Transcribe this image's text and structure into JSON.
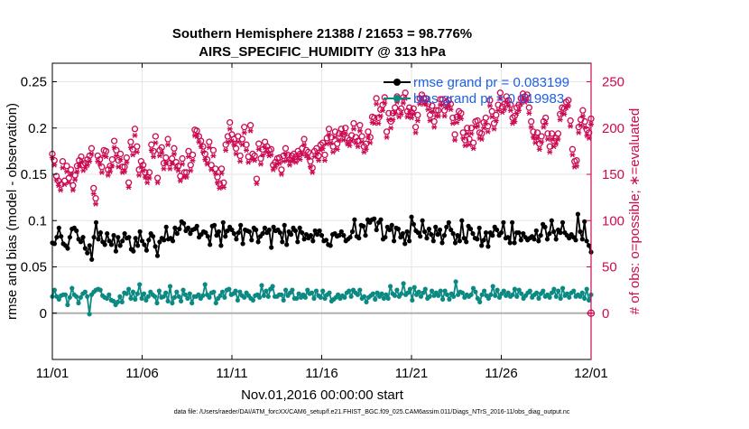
{
  "chart_data": {
    "type": "line",
    "title": "Southern Hemisphere 21388 / 21653 = 98.776%",
    "subtitle": "AIRS_SPECIFIC_HUMIDITY @ 313 hPa",
    "xlabel": "Nov.01,2016 00:00:00 start",
    "ylabel": "rmse and bias (model - observation)",
    "ylabel_right": "# of obs: o=possible; ∗=evaluated",
    "footnote": "data file: /Users/raeder/DAI/ATM_forcXX/CAM6_setup/f.e21.FHIST_BGC.f09_025.CAM6assim.011/Diags_NTrS_2016-11/obs_diag_output.nc",
    "x_tick_labels": [
      "11/01",
      "11/06",
      "11/11",
      "11/16",
      "11/21",
      "11/26",
      "12/01"
    ],
    "x_tick_days": [
      0,
      5,
      10,
      15,
      20,
      25,
      30
    ],
    "xlim": [
      0,
      30
    ],
    "y_ticks": [
      0,
      0.05,
      0.1,
      0.15,
      0.2,
      0.25
    ],
    "y_tick_labels": [
      "0",
      "0.05",
      "0.1",
      "0.15",
      "0.2",
      "0.25"
    ],
    "ylim": [
      -0.05,
      0.27
    ],
    "y2_ticks": [
      0,
      50,
      100,
      150,
      200,
      250
    ],
    "y2_tick_labels": [
      "0",
      "50",
      "100",
      "150",
      "200",
      "250"
    ],
    "y2lim": [
      -50,
      270
    ],
    "grid": true,
    "legend_position": "top-right",
    "colors": {
      "rmse": "#000000",
      "bias": "#0a8a82",
      "obs": "#cc0a52",
      "zero_line": "#b0b0b0",
      "legend_text": "#1f5fe0"
    },
    "series": [
      {
        "name": "rmse",
        "legend": "rmse grand pr = 0.083199",
        "values": [
          0.076,
          0.075,
          0.082,
          0.092,
          0.083,
          0.075,
          0.073,
          0.07,
          0.082,
          0.091,
          0.092,
          0.089,
          0.08,
          0.077,
          0.082,
          0.07,
          0.065,
          0.073,
          0.058,
          0.082,
          0.098,
          0.08,
          0.087,
          0.077,
          0.074,
          0.086,
          0.078,
          0.074,
          0.084,
          0.067,
          0.082,
          0.073,
          0.078,
          0.086,
          0.081,
          0.082,
          0.069,
          0.067,
          0.081,
          0.073,
          0.088,
          0.078,
          0.074,
          0.068,
          0.079,
          0.086,
          0.083,
          0.072,
          0.062,
          0.077,
          0.081,
          0.079,
          0.093,
          0.08,
          0.081,
          0.078,
          0.092,
          0.086,
          0.091,
          0.099,
          0.097,
          0.089,
          0.092,
          0.086,
          0.09,
          0.091,
          0.094,
          0.082,
          0.085,
          0.088,
          0.087,
          0.083,
          0.074,
          0.094,
          0.095,
          0.084,
          0.088,
          0.073,
          0.098,
          0.083,
          0.089,
          0.093,
          0.09,
          0.086,
          0.08,
          0.087,
          0.095,
          0.075,
          0.09,
          0.089,
          0.088,
          0.079,
          0.092,
          0.09,
          0.077,
          0.083,
          0.086,
          0.092,
          0.087,
          0.09,
          0.071,
          0.093,
          0.089,
          0.09,
          0.087,
          0.077,
          0.095,
          0.074,
          0.088,
          0.085,
          0.092,
          0.089,
          0.077,
          0.092,
          0.087,
          0.08,
          0.085,
          0.081,
          0.084,
          0.078,
          0.089,
          0.085,
          0.089,
          0.084,
          0.078,
          0.079,
          0.074,
          0.073,
          0.085,
          0.086,
          0.083,
          0.084,
          0.088,
          0.084,
          0.078,
          0.08,
          0.082,
          0.088,
          0.101,
          0.083,
          0.081,
          0.095,
          0.094,
          0.084,
          0.101,
          0.098,
          0.101,
          0.102,
          0.09,
          0.098,
          0.101,
          0.08,
          0.082,
          0.093,
          0.09,
          0.095,
          0.078,
          0.092,
          0.091,
          0.082,
          0.086,
          0.075,
          0.088,
          0.078,
          0.104,
          0.096,
          0.089,
          0.087,
          0.083,
          0.1,
          0.088,
          0.081,
          0.091,
          0.085,
          0.078,
          0.093,
          0.085,
          0.09,
          0.076,
          0.084,
          0.093,
          0.098,
          0.09,
          0.086,
          0.076,
          0.084,
          0.078,
          0.1,
          0.081,
          0.077,
          0.094,
          0.091,
          0.086,
          0.081,
          0.08,
          0.092,
          0.073,
          0.079,
          0.087,
          0.072,
          0.087,
          0.084,
          0.093,
          0.09,
          0.084,
          0.087,
          0.098,
          0.081,
          0.082,
          0.076,
          0.098,
          0.076,
          0.087,
          0.087,
          0.079,
          0.086,
          0.082,
          0.079,
          0.081,
          0.083,
          0.08,
          0.089,
          0.078,
          0.084,
          0.096,
          0.093,
          0.08,
          0.086,
          0.1,
          0.088,
          0.08,
          0.09,
          0.087,
          0.098,
          0.087,
          0.084,
          0.081,
          0.085,
          0.082,
          0.079,
          0.107,
          0.088,
          0.08,
          0.099,
          0.078,
          0.073,
          0.066
        ]
      },
      {
        "name": "bias",
        "legend": "bias grand pr = 0.019983",
        "values": [
          0.018,
          0.025,
          0.018,
          0.015,
          0.019,
          0.02,
          0.02,
          0.009,
          0.017,
          0.027,
          0.02,
          0.018,
          0.011,
          0.017,
          0.021,
          0.023,
          0.018,
          -0.001,
          0.02,
          0.023,
          0.025,
          0.026,
          0.025,
          0.019,
          0.017,
          0.016,
          0.02,
          0.014,
          0.013,
          0.009,
          0.012,
          0.018,
          0.012,
          0.022,
          0.021,
          0.026,
          0.016,
          0.023,
          0.015,
          0.021,
          0.031,
          0.016,
          0.021,
          0.014,
          0.018,
          0.023,
          0.02,
          0.018,
          0.011,
          0.024,
          0.017,
          0.018,
          0.022,
          0.013,
          0.029,
          0.011,
          0.017,
          0.023,
          0.018,
          0.013,
          0.025,
          0.02,
          0.016,
          0.021,
          0.011,
          0.018,
          0.018,
          0.02,
          0.016,
          0.019,
          0.031,
          0.02,
          0.017,
          0.022,
          0.023,
          0.011,
          0.016,
          0.019,
          0.023,
          0.017,
          0.025,
          0.026,
          0.02,
          0.021,
          0.024,
          0.014,
          0.023,
          0.019,
          0.017,
          0.022,
          0.019,
          0.016,
          0.014,
          0.019,
          0.02,
          0.017,
          0.03,
          0.019,
          0.024,
          0.018,
          0.026,
          0.029,
          0.018,
          0.018,
          0.02,
          0.02,
          0.014,
          0.025,
          0.019,
          0.022,
          0.025,
          0.016,
          0.016,
          0.021,
          0.017,
          0.02,
          0.017,
          0.025,
          0.021,
          0.022,
          0.016,
          0.024,
          0.019,
          0.017,
          0.024,
          0.016,
          0.02,
          0.022,
          0.013,
          0.015,
          0.017,
          0.02,
          0.016,
          0.019,
          0.017,
          0.022,
          0.024,
          0.018,
          0.025,
          0.022,
          0.02,
          0.025,
          0.016,
          0.018,
          0.012,
          0.017,
          0.019,
          0.021,
          0.015,
          0.022,
          0.018,
          0.021,
          0.016,
          0.02,
          0.016,
          0.029,
          0.021,
          0.019,
          0.025,
          0.018,
          0.021,
          0.032,
          0.02,
          0.022,
          0.026,
          0.014,
          0.028,
          0.02,
          0.023,
          0.018,
          0.022,
          0.026,
          0.016,
          0.018,
          0.024,
          0.019,
          0.022,
          0.019,
          0.024,
          0.015,
          0.024,
          0.02,
          0.015,
          0.021,
          0.018,
          0.034,
          0.02,
          0.023,
          0.022,
          0.017,
          0.02,
          0.018,
          0.02,
          0.027,
          0.023,
          0.016,
          0.012,
          0.02,
          0.024,
          0.019,
          0.016,
          0.02,
          0.029,
          0.019,
          0.025,
          0.017,
          0.021,
          0.024,
          0.019,
          0.022,
          0.018,
          0.02,
          0.026,
          0.018,
          0.025,
          0.021,
          0.016,
          0.019,
          0.022,
          0.024,
          0.017,
          0.02,
          0.022,
          0.016,
          0.021,
          0.024,
          0.018,
          0.02,
          0.017,
          0.022,
          0.026,
          0.018,
          0.024,
          0.016,
          0.027,
          0.019,
          0.021,
          0.017,
          0.022,
          0.024,
          0.018,
          0.02,
          0.018,
          0.022,
          0.016,
          0.026,
          0.014,
          0.02
        ]
      }
    ],
    "obs_possible": [
      172,
      165,
      148,
      143,
      139,
      164,
      143,
      159,
      146,
      155,
      138,
      149,
      159,
      165,
      169,
      160,
      162,
      166,
      170,
      178,
      135,
      124,
      170,
      166,
      158,
      176,
      175,
      155,
      159,
      166,
      186,
      176,
      165,
      172,
      158,
      158,
      168,
      141,
      185,
      177,
      199,
      180,
      155,
      164,
      160,
      152,
      147,
      152,
      182,
      175,
      191,
      146,
      176,
      179,
      162,
      168,
      188,
      162,
      167,
      178,
      163,
      159,
      148,
      167,
      152,
      152,
      175,
      160,
      171,
      198,
      197,
      191,
      186,
      180,
      172,
      166,
      185,
      160,
      176,
      156,
      147,
      140,
      156,
      141,
      182,
      191,
      206,
      193,
      188,
      178,
      191,
      170,
      188,
      201,
      182,
      169,
      203,
      172,
      170,
      145,
      183,
      167,
      177,
      185,
      180,
      176,
      177,
      160,
      163,
      167,
      168,
      155,
      170,
      178,
      171,
      166,
      170,
      172,
      169,
      175,
      172,
      178,
      188,
      176,
      174,
      164,
      157,
      175,
      178,
      170,
      182,
      184,
      171,
      189,
      199,
      190,
      180,
      196,
      183,
      194,
      199,
      193,
      200,
      189,
      187,
      192,
      205,
      190,
      186,
      203,
      191,
      180,
      183,
      196,
      190,
      212,
      211,
      232,
      211,
      220,
      225,
      233,
      196,
      216,
      207,
      216,
      222,
      234,
      218,
      221,
      233,
      238,
      218,
      222,
      217,
      221,
      201,
      214,
      232,
      236,
      232,
      232,
      226,
      214,
      224,
      207,
      219,
      219,
      231,
      231,
      219,
      228,
      230,
      226,
      211,
      193,
      212,
      218,
      216,
      195,
      187,
      200,
      188,
      200,
      184,
      207,
      208,
      195,
      194,
      206,
      211,
      202,
      230,
      218,
      205,
      214,
      225,
      238,
      223,
      226,
      234,
      230,
      225,
      211,
      213,
      222,
      225,
      232,
      237,
      234,
      236,
      222,
      207,
      196,
      190,
      195,
      183,
      191,
      207,
      211,
      194,
      180,
      194,
      186,
      189,
      194,
      215,
      222,
      221,
      228,
      230,
      208,
      177,
      164,
      165,
      201,
      209,
      219,
      207,
      198,
      195,
      210
    ],
    "obs_evaluated": [
      168,
      160,
      144,
      138,
      133,
      157,
      139,
      153,
      141,
      150,
      133,
      144,
      153,
      159,
      163,
      154,
      157,
      160,
      164,
      172,
      129,
      118,
      164,
      161,
      152,
      170,
      169,
      149,
      153,
      159,
      179,
      170,
      158,
      166,
      152,
      153,
      163,
      136,
      179,
      171,
      192,
      174,
      149,
      158,
      154,
      147,
      141,
      146,
      176,
      169,
      184,
      141,
      170,
      173,
      156,
      162,
      182,
      156,
      162,
      172,
      157,
      154,
      143,
      161,
      147,
      147,
      169,
      154,
      165,
      192,
      191,
      185,
      180,
      174,
      166,
      161,
      179,
      155,
      170,
      151,
      141,
      135,
      151,
      136,
      176,
      185,
      199,
      186,
      182,
      172,
      185,
      164,
      182,
      195,
      176,
      163,
      197,
      166,
      165,
      140,
      177,
      161,
      171,
      179,
      174,
      170,
      171,
      155,
      158,
      161,
      162,
      150,
      164,
      172,
      165,
      160,
      164,
      166,
      163,
      169,
      166,
      172,
      182,
      170,
      168,
      158,
      152,
      169,
      172,
      165,
      176,
      178,
      165,
      183,
      193,
      184,
      174,
      190,
      177,
      187,
      193,
      187,
      194,
      183,
      181,
      186,
      199,
      184,
      180,
      197,
      185,
      174,
      177,
      190,
      184,
      206,
      205,
      226,
      205,
      213,
      219,
      227,
      190,
      209,
      200,
      209,
      216,
      228,
      212,
      215,
      227,
      232,
      212,
      216,
      211,
      215,
      195,
      208,
      226,
      230,
      226,
      226,
      220,
      208,
      218,
      201,
      213,
      213,
      225,
      225,
      213,
      222,
      224,
      220,
      205,
      187,
      206,
      212,
      210,
      189,
      181,
      194,
      182,
      194,
      178,
      201,
      202,
      189,
      188,
      200,
      205,
      196,
      224,
      212,
      199,
      208,
      219,
      232,
      217,
      220,
      228,
      224,
      219,
      205,
      207,
      216,
      219,
      226,
      231,
      228,
      230,
      216,
      201,
      190,
      184,
      189,
      177,
      185,
      201,
      205,
      188,
      174,
      188,
      180,
      183,
      188,
      209,
      216,
      215,
      222,
      224,
      202,
      171,
      158,
      159,
      195,
      203,
      213,
      201,
      192,
      189,
      204
    ]
  }
}
